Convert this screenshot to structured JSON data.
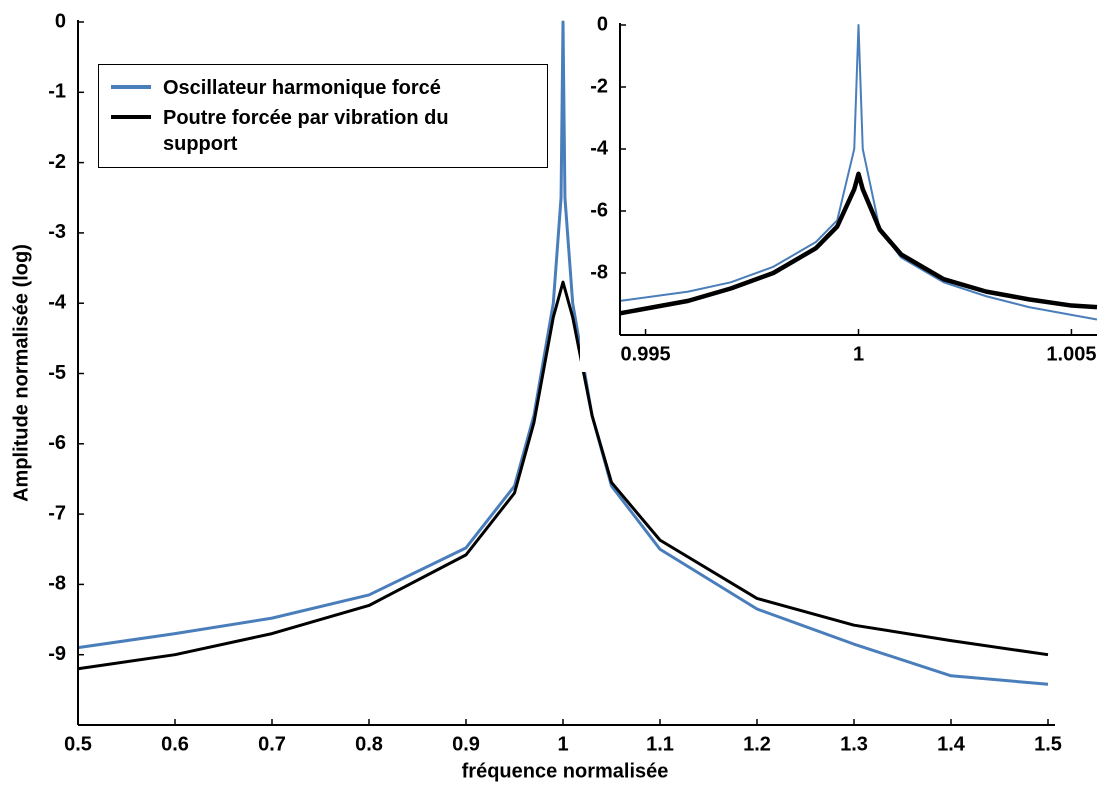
{
  "chart_data": [
    {
      "type": "line",
      "xlabel": "fréquence normalisée",
      "ylabel": "Amplitude normalisée (log)",
      "x": [
        0.5,
        0.6,
        0.7,
        0.8,
        0.9,
        0.95,
        0.97,
        0.99,
        0.998,
        1.0,
        1.002,
        1.01,
        1.03,
        1.05,
        1.1,
        1.2,
        1.3,
        1.4,
        1.5
      ],
      "series": [
        {
          "name": "Oscillateur harmonique forcé",
          "color": "#4a7ebb",
          "values": [
            -8.9,
            -8.7,
            -8.48,
            -8.15,
            -7.48,
            -6.6,
            -5.6,
            -4.0,
            -2.5,
            0,
            -2.5,
            -4.0,
            -5.6,
            -6.6,
            -7.5,
            -8.35,
            -8.85,
            -9.3,
            -9.42
          ]
        },
        {
          "name": "Poutre forcée par vibration du support",
          "color": "#000000",
          "values": [
            -9.2,
            -9.0,
            -8.7,
            -8.3,
            -7.58,
            -6.7,
            -5.7,
            -4.2,
            -3.8,
            -3.7,
            -3.8,
            -4.2,
            -5.6,
            -6.55,
            -7.37,
            -8.2,
            -8.58,
            -8.8,
            -9.0
          ]
        }
      ],
      "xlim": [
        0.5,
        1.5
      ],
      "ylim": [
        -10,
        0
      ],
      "xticks": [
        0.5,
        0.6,
        0.7,
        0.8,
        0.9,
        1,
        1.1,
        1.2,
        1.3,
        1.4,
        1.5
      ],
      "yticks": [
        0,
        -1,
        -2,
        -3,
        -4,
        -5,
        -6,
        -7,
        -8,
        -9
      ],
      "legend": "upper left"
    },
    {
      "type": "line",
      "x": [
        0.9944,
        0.996,
        0.997,
        0.998,
        0.999,
        0.9995,
        0.9999,
        1.0,
        1.0001,
        1.0005,
        1.001,
        1.002,
        1.003,
        1.004,
        1.005,
        1.0056
      ],
      "series": [
        {
          "color": "#4a7ebb",
          "values": [
            -8.9,
            -8.6,
            -8.3,
            -7.8,
            -7.0,
            -6.3,
            -4.0,
            0,
            -4.0,
            -6.6,
            -7.5,
            -8.3,
            -8.75,
            -9.1,
            -9.35,
            -9.5
          ]
        },
        {
          "color": "#000000",
          "values": [
            -9.3,
            -8.9,
            -8.5,
            -8.0,
            -7.2,
            -6.5,
            -5.3,
            -4.8,
            -5.3,
            -6.6,
            -7.4,
            -8.2,
            -8.6,
            -8.85,
            -9.05,
            -9.1
          ]
        }
      ],
      "xlim": [
        0.9944,
        1.0056
      ],
      "ylim": [
        -10,
        0
      ],
      "xticks": [
        0.995,
        1,
        1.005
      ],
      "yticks": [
        0,
        -2,
        -4,
        -6,
        -8
      ]
    }
  ]
}
